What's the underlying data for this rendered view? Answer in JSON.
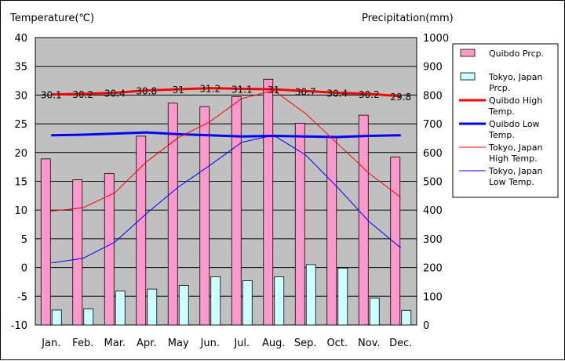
{
  "chart_data": {
    "type": "bar+line",
    "title": "",
    "y_left_label": "Temperature(℃)",
    "y_right_label": "Precipitation(mm)",
    "categories": [
      "Jan.",
      "Feb.",
      "Mar.",
      "Apr.",
      "May",
      "Jun.",
      "Jul.",
      "Aug.",
      "Sep.",
      "Oct.",
      "Nov.",
      "Dec."
    ],
    "ylim_left": [
      -10,
      40
    ],
    "ylim_right": [
      0,
      1000
    ],
    "y_left_ticks": [
      "40",
      "35",
      "30",
      "25",
      "20",
      "15",
      "10",
      "5",
      "0",
      "-5",
      "-10"
    ],
    "y_right_ticks": [
      "1000",
      "900",
      "800",
      "700",
      "600",
      "500",
      "400",
      "300",
      "200",
      "100",
      "0"
    ],
    "bar_series": [
      {
        "name": "Quibdo Prcp.",
        "axis": "right",
        "color": "#ff99cc",
        "values": [
          578,
          505,
          527,
          657,
          772,
          760,
          794,
          855,
          702,
          654,
          730,
          584
        ]
      },
      {
        "name": "Tokyo, Japan Prcp.",
        "axis": "right",
        "color": "#ccffff",
        "values": [
          52,
          56,
          118,
          125,
          138,
          168,
          154,
          168,
          210,
          198,
          93,
          51
        ]
      }
    ],
    "line_series": [
      {
        "name": "Quibdo High Temp.",
        "axis": "left",
        "color": "#ff0000",
        "width": 3,
        "values": [
          30.1,
          30.2,
          30.4,
          30.8,
          31.0,
          31.2,
          31.1,
          31.0,
          30.7,
          30.4,
          30.2,
          29.8
        ],
        "labels": [
          "30.1",
          "30.2",
          "30.4",
          "30.8",
          "31",
          "31.2",
          "31.1",
          "31",
          "30.7",
          "30.4",
          "30.2",
          "29.8"
        ]
      },
      {
        "name": "Quibdo Low Temp.",
        "axis": "left",
        "color": "#0000ff",
        "width": 3,
        "values": [
          23.0,
          23.1,
          23.3,
          23.5,
          23.2,
          23.0,
          22.8,
          22.9,
          22.8,
          22.7,
          22.9,
          23.0
        ]
      },
      {
        "name": "Tokyo, Japan High Temp.",
        "axis": "left",
        "color": "#ff0000",
        "width": 1,
        "values": [
          9.8,
          10.4,
          13.0,
          18.4,
          22.6,
          25.4,
          29.4,
          30.8,
          26.8,
          21.6,
          16.4,
          12.2
        ]
      },
      {
        "name": "Tokyo, Japan Low Temp.",
        "axis": "left",
        "color": "#0000ff",
        "width": 1,
        "values": [
          0.8,
          1.6,
          4.4,
          9.4,
          14.0,
          17.8,
          21.8,
          23.0,
          19.6,
          14.0,
          8.0,
          3.4
        ]
      }
    ],
    "legend": {
      "placement": "right",
      "items": [
        {
          "kind": "bar",
          "series": 0,
          "lines": [
            "Quibdo Prcp."
          ]
        },
        {
          "kind": "bar",
          "series": 1,
          "lines": [
            "Tokyo, Japan",
            "Prcp."
          ]
        },
        {
          "kind": "line",
          "series": 0,
          "lines": [
            "Quibdo High",
            "Temp."
          ]
        },
        {
          "kind": "line",
          "series": 1,
          "lines": [
            "Quibdo Low",
            "Temp."
          ]
        },
        {
          "kind": "line",
          "series": 2,
          "lines": [
            "Tokyo, Japan",
            "High Temp."
          ]
        },
        {
          "kind": "line",
          "series": 3,
          "lines": [
            "Tokyo, Japan",
            "Low Temp."
          ]
        }
      ]
    },
    "plot_background": "#c0c0c0",
    "grid": true
  }
}
